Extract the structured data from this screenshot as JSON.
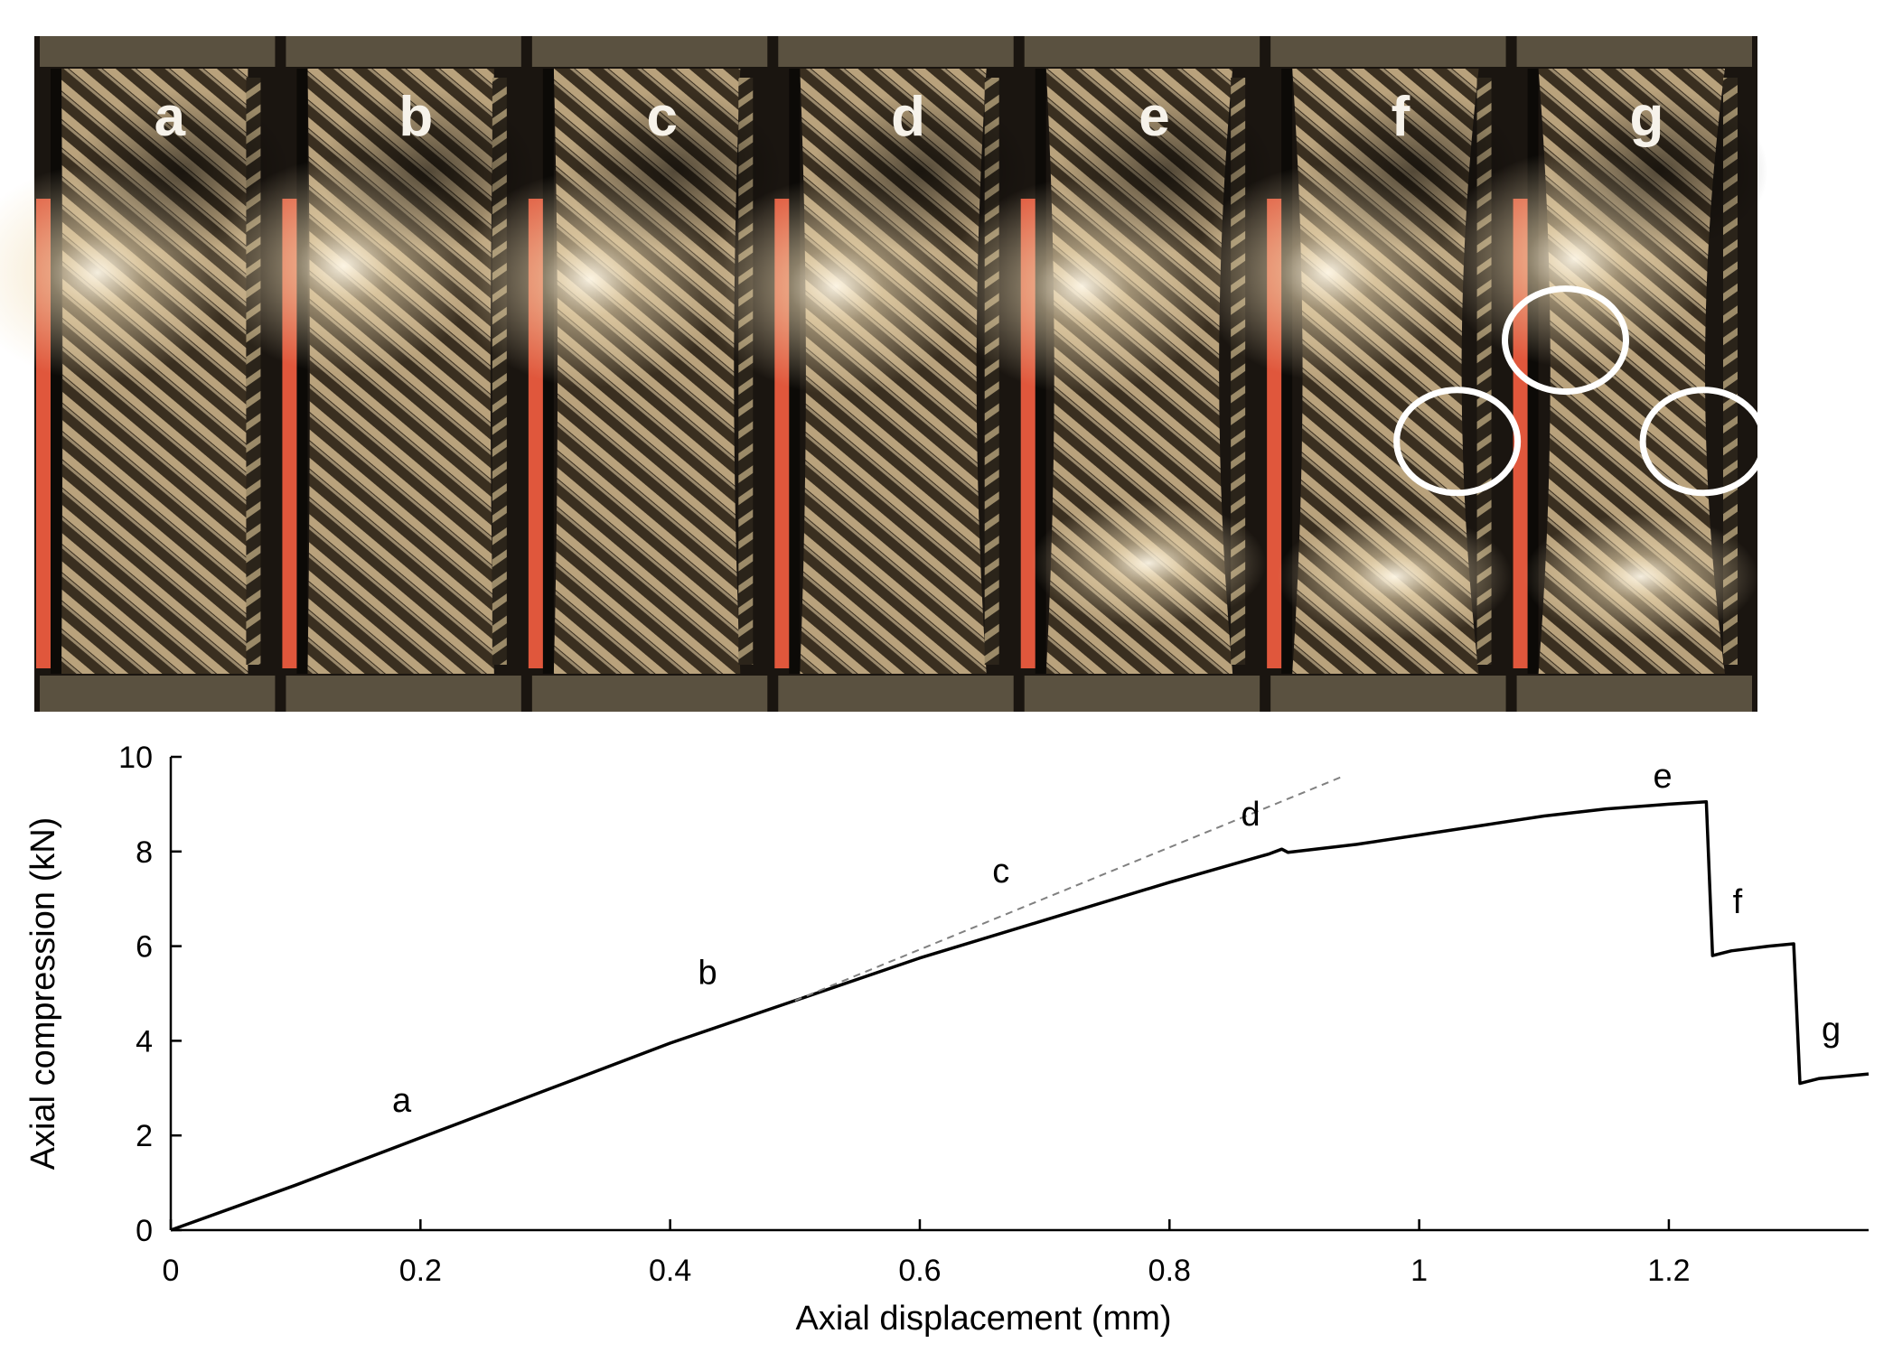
{
  "photo_strip": {
    "panels": [
      "a",
      "b",
      "c",
      "d",
      "e",
      "f",
      "g"
    ],
    "highlight_panels": [
      "f",
      "g"
    ],
    "colors": {
      "frame": "#5a5140",
      "carbon_light": "#e9dcc2",
      "carbon_dark": "#2a2218",
      "backing": "#e0573c",
      "circle": "#ffffff"
    }
  },
  "chart_data": {
    "type": "line",
    "xlabel": "Axial displacement (mm)",
    "ylabel": "Axial compression (kN)",
    "xlim": [
      0,
      1.36
    ],
    "ylim": [
      0,
      10
    ],
    "x_ticks": [
      "0",
      "0.2",
      "0.4",
      "0.6",
      "0.8",
      "1",
      "1.2"
    ],
    "y_ticks": [
      "0",
      "2",
      "4",
      "6",
      "8",
      "10"
    ],
    "grid": false,
    "series": [
      {
        "style": "solid",
        "color": "#000000",
        "points": [
          [
            0,
            0
          ],
          [
            0.1,
            0.95
          ],
          [
            0.2,
            1.95
          ],
          [
            0.3,
            2.95
          ],
          [
            0.4,
            3.95
          ],
          [
            0.5,
            4.85
          ],
          [
            0.6,
            5.75
          ],
          [
            0.7,
            6.55
          ],
          [
            0.8,
            7.35
          ],
          [
            0.88,
            7.95
          ],
          [
            0.89,
            8.05
          ],
          [
            0.895,
            7.98
          ],
          [
            0.95,
            8.15
          ],
          [
            1.0,
            8.35
          ],
          [
            1.05,
            8.55
          ],
          [
            1.1,
            8.75
          ],
          [
            1.15,
            8.9
          ],
          [
            1.2,
            9.0
          ],
          [
            1.23,
            9.05
          ],
          [
            1.235,
            5.8
          ],
          [
            1.25,
            5.9
          ],
          [
            1.28,
            6.0
          ],
          [
            1.3,
            6.05
          ],
          [
            1.305,
            3.1
          ],
          [
            1.32,
            3.2
          ],
          [
            1.36,
            3.3
          ]
        ]
      },
      {
        "style": "dashed",
        "color": "#808080",
        "points": [
          [
            0.5,
            4.85
          ],
          [
            0.94,
            9.6
          ]
        ]
      }
    ],
    "annotations": [
      {
        "text": "a",
        "x": 0.185,
        "y": 2.5
      },
      {
        "text": "b",
        "x": 0.43,
        "y": 5.2
      },
      {
        "text": "c",
        "x": 0.665,
        "y": 7.35
      },
      {
        "text": "d",
        "x": 0.865,
        "y": 8.55
      },
      {
        "text": "e",
        "x": 1.195,
        "y": 9.35
      },
      {
        "text": "f",
        "x": 1.255,
        "y": 6.7
      },
      {
        "text": "g",
        "x": 1.33,
        "y": 4.0
      }
    ]
  }
}
